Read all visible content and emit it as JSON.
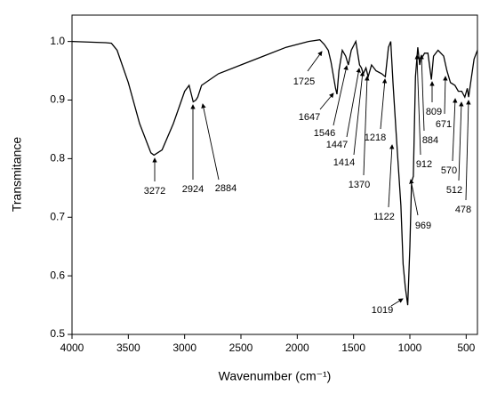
{
  "chart_data": {
    "type": "line",
    "x_label": "Wavenumber (cm⁻¹)",
    "y_label": "Transmitance",
    "x": [
      4000,
      3700,
      3650,
      3600,
      3500,
      3400,
      3300,
      3272,
      3200,
      3100,
      3000,
      2960,
      2924,
      2900,
      2884,
      2850,
      2700,
      2500,
      2300,
      2100,
      1900,
      1800,
      1760,
      1725,
      1700,
      1660,
      1647,
      1630,
      1600,
      1570,
      1546,
      1520,
      1480,
      1447,
      1430,
      1414,
      1390,
      1370,
      1340,
      1300,
      1250,
      1218,
      1190,
      1170,
      1150,
      1122,
      1100,
      1080,
      1060,
      1040,
      1019,
      1000,
      985,
      969,
      950,
      930,
      912,
      900,
      884,
      870,
      840,
      809,
      790,
      750,
      700,
      671,
      640,
      600,
      570,
      540,
      512,
      490,
      478,
      460,
      430,
      400
    ],
    "values": [
      1.0,
      0.998,
      0.997,
      0.985,
      0.93,
      0.86,
      0.81,
      0.806,
      0.815,
      0.86,
      0.915,
      0.925,
      0.897,
      0.9,
      0.905,
      0.925,
      0.945,
      0.96,
      0.975,
      0.99,
      1.0,
      1.003,
      0.995,
      0.985,
      0.965,
      0.92,
      0.91,
      0.95,
      0.985,
      0.975,
      0.96,
      0.985,
      1.0,
      0.96,
      0.955,
      0.945,
      0.955,
      0.94,
      0.96,
      0.95,
      0.945,
      0.94,
      0.99,
      1.0,
      0.93,
      0.845,
      0.78,
      0.72,
      0.62,
      0.58,
      0.55,
      0.65,
      0.76,
      0.77,
      0.94,
      0.99,
      0.96,
      0.975,
      0.975,
      0.98,
      0.98,
      0.935,
      0.975,
      0.985,
      0.975,
      0.95,
      0.93,
      0.925,
      0.915,
      0.915,
      0.905,
      0.92,
      0.905,
      0.93,
      0.97,
      0.985
    ],
    "color": "#000000",
    "xlim": [
      4000,
      400
    ],
    "ylim": [
      0.5,
      1.045
    ],
    "xticks": [
      4000,
      3500,
      3000,
      2500,
      2000,
      1500,
      1000,
      500
    ],
    "yticks": [
      0.5,
      0.6,
      0.7,
      0.8,
      0.9,
      {
        "value": 1,
        "label": "1.0"
      }
    ],
    "annotations": [
      3272,
      2924,
      2884,
      1725,
      1647,
      1546,
      1447,
      1414,
      1370,
      1218,
      1122,
      1019,
      969,
      912,
      884,
      809,
      671,
      570,
      512,
      478
    ]
  }
}
